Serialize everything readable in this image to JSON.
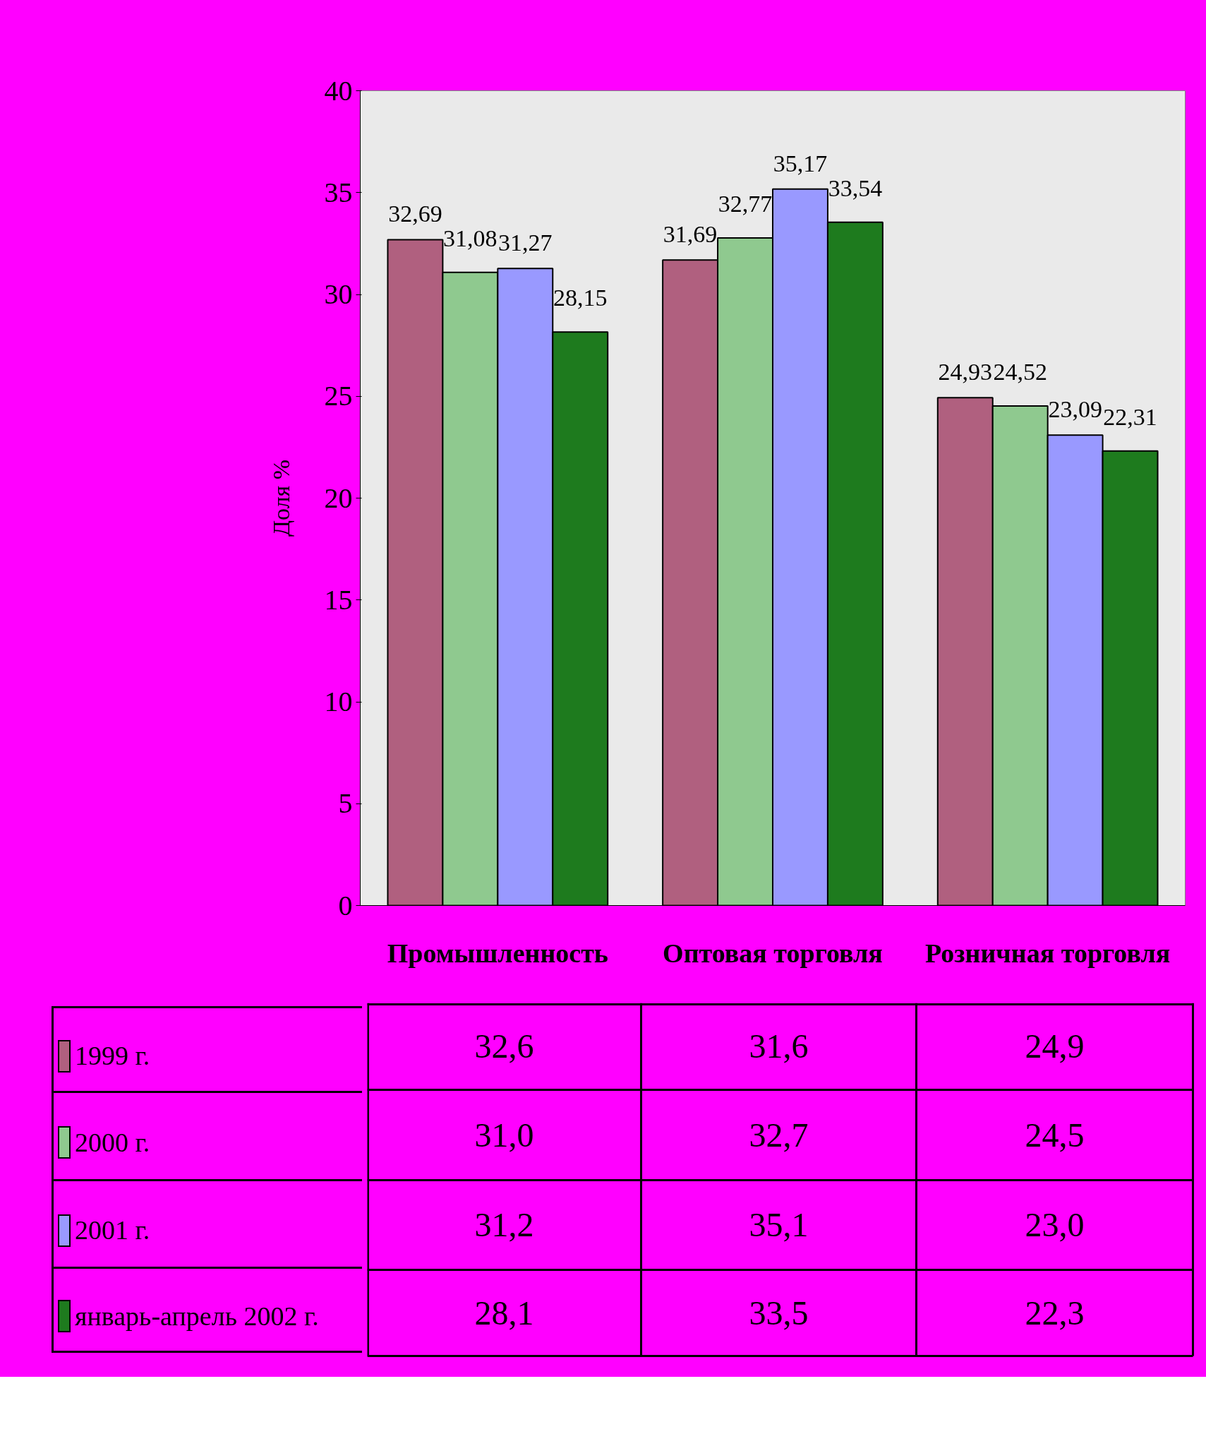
{
  "chart_data": {
    "type": "bar",
    "ylabel": "Доля %",
    "categories": [
      "Промышленность",
      "Оптовая торговля",
      "Розничная торговля"
    ],
    "series": [
      {
        "name": "1999 г.",
        "color": "#b0607f",
        "values": [
          32.69,
          31.69,
          24.93
        ],
        "value_labels": [
          "32,69",
          "31,69",
          "24,93"
        ]
      },
      {
        "name": "2000 г.",
        "color": "#8fc98f",
        "values": [
          31.08,
          32.77,
          24.52
        ],
        "value_labels": [
          "31,08",
          "32,77",
          "24,52"
        ]
      },
      {
        "name": "2001 г.",
        "color": "#9999ff",
        "values": [
          31.27,
          35.17,
          23.09
        ],
        "value_labels": [
          "31,27",
          "35,17",
          "23,09"
        ]
      },
      {
        "name": "январь-апрель 2002 г.",
        "color": "#1e7b1e",
        "values": [
          28.15,
          33.54,
          22.31
        ],
        "value_labels": [
          "28,15",
          "33,54",
          "22,31"
        ]
      }
    ],
    "ylim": [
      0,
      40
    ],
    "yticks": [
      0,
      5,
      10,
      15,
      20,
      25,
      30,
      35,
      40
    ],
    "grid": false,
    "legend": "bottom left",
    "annotations": [
      "32,6",
      "31,6",
      "24,9",
      "31,0",
      "32,7",
      "24,5",
      "31,2",
      "35,1",
      "23,0",
      "28,1",
      "33,5",
      "22,3"
    ]
  }
}
